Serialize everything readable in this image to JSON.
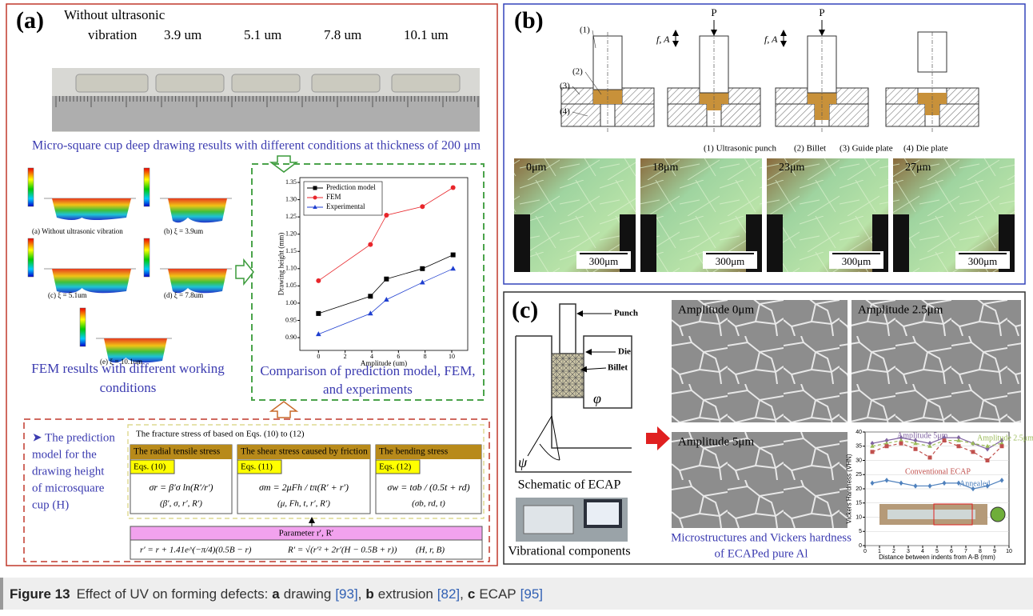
{
  "panel_a": {
    "label": "(a)",
    "header_lines": [
      "Without ultrasonic",
      "vibration"
    ],
    "amplitudes": [
      "3.9 um",
      "5.1 um",
      "7.8 um",
      "10.1 um"
    ],
    "photo_caption": "Micro-square cup deep drawing results with different conditions at thickness of 200 μm",
    "fem_labels": [
      "(a) Without ultrasonic vibration",
      "(b) ξ = 3.9um",
      "(c) ξ = 5.1um",
      "(d) ξ = 7.8um",
      "(e) ξ = 10.1um"
    ],
    "fem_caption": [
      "FEM results with different working",
      "conditions"
    ],
    "chart": {
      "type": "line",
      "x_label": "Amplitude (um)",
      "y_label": "Drawing height (mm)",
      "xlim": [
        -1.4,
        11.2
      ],
      "ylim": [
        0.863,
        1.364
      ],
      "xticks": [
        0,
        2,
        4,
        6,
        8,
        10
      ],
      "yticks": [
        {
          "value": 0.9,
          "label": "0.90"
        },
        {
          "value": 0.95,
          "label": "0.95"
        },
        {
          "value": 1,
          "label": "1.00"
        },
        {
          "value": 1.05,
          "label": "1.05"
        },
        {
          "value": 1.1,
          "label": "1.10"
        },
        {
          "value": 1.15,
          "label": "1.15"
        },
        {
          "value": 1.2,
          "label": "1.20"
        },
        {
          "value": 1.25,
          "label": "1.25"
        },
        {
          "value": 1.3,
          "label": "1.30"
        },
        {
          "value": 1.35,
          "label": "1.35"
        }
      ],
      "grid": false,
      "legend": "top-left",
      "x": [
        0,
        3.9,
        5.1,
        7.8,
        10.1
      ],
      "series": [
        {
          "name": "Prediction model",
          "color": "#000000",
          "marker": "square",
          "values": [
            0.97,
            1.02,
            1.07,
            1.1,
            1.14
          ]
        },
        {
          "name": "FEM",
          "color": "#e8262b",
          "marker": "circle",
          "values": [
            1.065,
            1.17,
            1.255,
            1.28,
            1.335
          ]
        },
        {
          "name": "Experimental",
          "color": "#1f3fd0",
          "marker": "triangle",
          "values": [
            0.91,
            0.97,
            1.01,
            1.06,
            1.1
          ]
        }
      ]
    },
    "chart_caption": [
      "Comparison of prediction model, FEM,",
      "and experiments"
    ],
    "model": {
      "lines": [
        "➤ The prediction",
        "model for the",
        "drawing height",
        "of microsquare",
        "cup (H)"
      ],
      "fracture": "The fracture stress σf based on Eqs. (10) to (12)",
      "boxes": [
        {
          "title": "The radial tensile stress",
          "eq": "Eqs. (10)",
          "formula": "σr = β′σ ln(R′/r′)",
          "params": "(β′, σ, r′, R′)"
        },
        {
          "title": "The shear stress caused by friction",
          "eq": "Eqs. (11)",
          "formula": "σm = 2μFh / tπ(R′ + r′)",
          "params": "(μ, Fh, t, r′, R′)"
        },
        {
          "title": "The bending stress",
          "eq": "Eqs. (12)",
          "formula": "σw = tσb / (0.5t + rd)",
          "params": "(σb, rd, t)"
        }
      ],
      "parameter": "Parameter r′, R′",
      "formulas": [
        "r′ = r + 1.41e^(−π/4)(0.5B − r)",
        "R′ = √(r′² + 2r′(H − 0.5B + r))",
        "(H, r, B)"
      ]
    }
  },
  "panel_b": {
    "label": "(b)",
    "parts": [
      "(1)",
      "(2)",
      "(3)",
      "(4)"
    ],
    "forces": [
      "P",
      "P"
    ],
    "vibrations": [
      "f, A",
      "f, A"
    ],
    "legend": [
      "(1) Ultrasonic punch",
      "(2) Billet",
      "(3) Guide plate",
      "(4) Die plate"
    ],
    "amplitudes": [
      "0μm",
      "18μm",
      "23μm",
      "27μm"
    ],
    "scale_bars": [
      "300μm",
      "300μm",
      "300μm",
      "300μm"
    ]
  },
  "panel_c": {
    "label": "(c)",
    "schematic_labels": [
      "Punch",
      "Die",
      "Billet",
      "φ",
      "ψ"
    ],
    "schematic_caption": "Schematic of ECAP",
    "components_caption": "Vibrational components",
    "sem_labels": [
      "Amplitude 0μm",
      "Amplitude 2.5μm",
      "Amplitude 5μm"
    ],
    "caption": [
      "Microstructures and Vickers hardness",
      "of ECAPed pure Al"
    ],
    "chart": {
      "type": "line",
      "x_label": "Distance between indents from A-B (mm)",
      "y_label": "Vickers Hardness (VHN)",
      "xlim": [
        0,
        10
      ],
      "ylim": [
        0,
        40
      ],
      "xticks": [
        0,
        1,
        2,
        3,
        4,
        5,
        6,
        7,
        8,
        9,
        10
      ],
      "yticks": [
        0,
        5,
        10,
        15,
        20,
        25,
        30,
        35,
        40
      ],
      "grid": true,
      "x": [
        0.5,
        1.5,
        2.5,
        3.5,
        4.5,
        5.5,
        6.5,
        7.5,
        8.5,
        9.5
      ],
      "series": [
        {
          "name": "Amplitude 5μm",
          "color": "#8064a2",
          "marker": "diamond",
          "line_style": "solid",
          "values": [
            36,
            37,
            38,
            37,
            36,
            38,
            38,
            36,
            34,
            37
          ]
        },
        {
          "name": "Amplitude 2.5μm",
          "color": "#9bbb59",
          "marker": "triangle",
          "line_style": "dashed",
          "values": [
            35,
            36,
            37,
            36,
            35,
            37,
            37,
            36,
            35,
            36
          ]
        },
        {
          "name": "Conventional ECAP",
          "color": "#c0504d",
          "marker": "square",
          "line_style": "dashed",
          "values": [
            33,
            35,
            36,
            34,
            31,
            37,
            35,
            33,
            30,
            35
          ]
        },
        {
          "name": "Annealed",
          "color": "#4f81bd",
          "marker": "diamond",
          "line_style": "solid",
          "values": [
            22,
            23,
            22,
            21,
            21,
            22,
            22,
            20,
            21,
            23
          ]
        }
      ]
    }
  },
  "caption": {
    "label": "Figure 13",
    "intro": "Effect of UV on forming defects:",
    "items": [
      {
        "key": "a",
        "text": "drawing",
        "ref": "[93]",
        "sep": ","
      },
      {
        "key": "b",
        "text": "extrusion",
        "ref": "[82]",
        "sep": ","
      },
      {
        "key": "c",
        "text": "ECAP",
        "ref": "[95]"
      }
    ]
  }
}
